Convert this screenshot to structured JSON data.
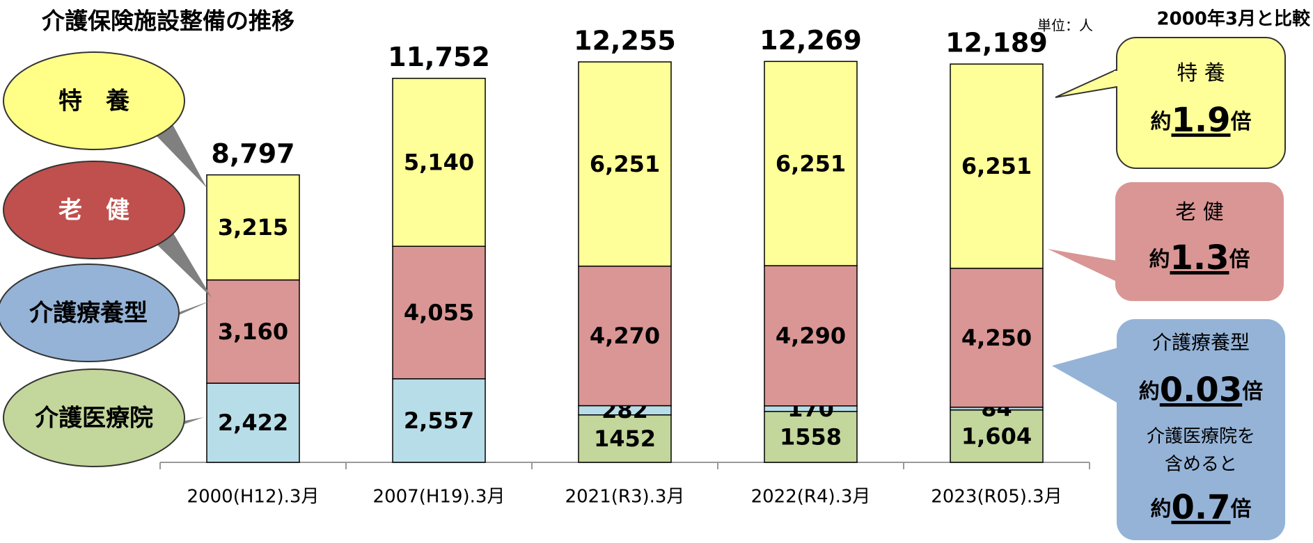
{
  "chart_data": {
    "type": "stacked_bar",
    "title": "介護保険施設整備の推移",
    "unit": "単位：人",
    "comparison_title": "2000年3月と比較",
    "categories": [
      "2000(H12).3月",
      "2007(H19).3月",
      "2021(R3).3月",
      "2022(R4).3月",
      "2023(R05).3月"
    ],
    "series": [
      {
        "name": "介護医療院",
        "color": "#c3d69b",
        "values": [
          null,
          null,
          1452,
          1558,
          1604
        ],
        "value_labels": [
          null,
          null,
          "1452",
          "1558",
          "1,604"
        ]
      },
      {
        "name": "介護療養型",
        "color": "#b7dde8",
        "values": [
          2422,
          2557,
          282,
          170,
          84
        ],
        "value_labels": [
          "2,422",
          "2,557",
          "282",
          "170",
          "84"
        ]
      },
      {
        "name": "老　健",
        "color": "#d99694",
        "values": [
          3160,
          4055,
          4270,
          4290,
          4250
        ],
        "value_labels": [
          "3,160",
          "4,055",
          "4,270",
          "4,290",
          "4,250"
        ]
      },
      {
        "name": "特　養",
        "color": "#ffff99",
        "values": [
          3215,
          5140,
          6251,
          6251,
          6251
        ],
        "value_labels": [
          "3,215",
          "5,140",
          "6,251",
          "6,251",
          "6,251"
        ]
      }
    ],
    "totals": [
      8797,
      11752,
      12255,
      12269,
      12189
    ],
    "total_labels": [
      "8,797",
      "11,752",
      "12,255",
      "12,269",
      "12,189"
    ],
    "callouts": [
      {
        "title": "特 養",
        "prefix": "約",
        "ratio": "1.9",
        "suffix": "倍"
      },
      {
        "title": "老 健",
        "prefix": "約",
        "ratio": "1.3",
        "suffix": "倍"
      },
      {
        "title": "介護療養型",
        "prefix": "約",
        "ratio": "0.03",
        "suffix": "倍",
        "notes": [
          "介護医療院を",
          "含めると"
        ],
        "prefix2": "約",
        "ratio2": "0.7",
        "suffix2": "倍"
      }
    ]
  }
}
